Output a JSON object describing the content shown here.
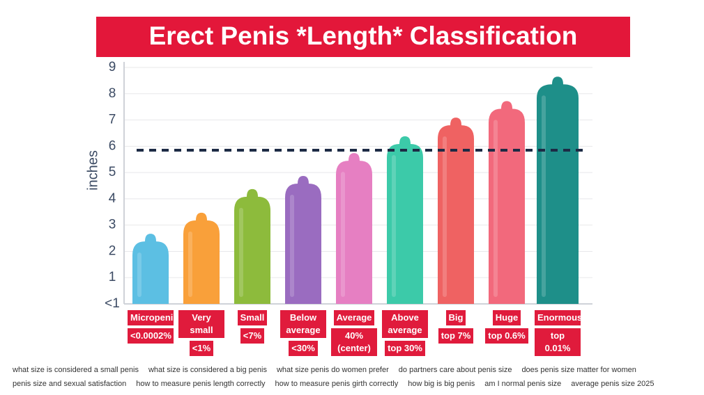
{
  "chart_data": {
    "type": "bar",
    "title": "Erect Penis *Length* Classification",
    "y_label": "inches",
    "categories": [
      "Micropenis",
      "Very small",
      "Small",
      "Below average",
      "Average",
      "Above average",
      "Big",
      "Huge",
      "Enormous"
    ],
    "shares": [
      "<0.0002%",
      "<1%",
      "<7%",
      "<30%",
      "40% (center)",
      "top 30%",
      "top 7%",
      "top 0.6%",
      "top 0.01%"
    ],
    "values": [
      2.67,
      3.47,
      4.37,
      4.87,
      5.74,
      6.38,
      7.09,
      7.72,
      8.65
    ],
    "colors": [
      "#5cbfe3",
      "#f9a03a",
      "#8dbb3c",
      "#9a6cc0",
      "#e67fc2",
      "#3ccaa9",
      "#ef6262",
      "#f2697c",
      "#1e8f89"
    ],
    "reference_line": 5.85,
    "ylim": [
      0,
      9
    ],
    "yticks": [
      {
        "value": 0,
        "label": "<1"
      },
      1,
      2,
      3,
      4,
      5,
      6,
      7,
      8,
      9
    ],
    "grid": true
  },
  "footer": {
    "lines": [
      [
        "what size is considered a small penis",
        "what size is considered a big penis",
        "what size penis do women prefer",
        "do partners care about penis size",
        "does penis size matter for women"
      ],
      [
        "penis size and sexual satisfaction",
        "how to measure penis length correctly",
        "how to measure penis girth correctly",
        "how big is big penis",
        "am I normal penis size",
        "average penis size 2025"
      ]
    ]
  }
}
